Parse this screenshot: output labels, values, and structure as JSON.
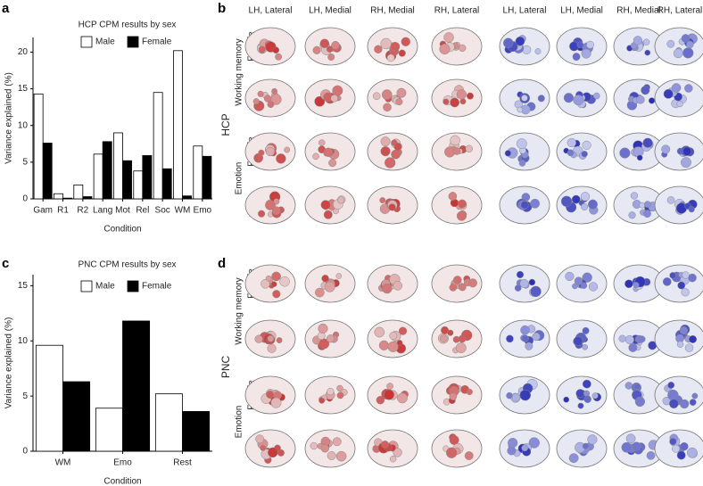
{
  "chart_data": [
    {
      "type": "bar",
      "label": "a",
      "title": "HCP CPM results by sex",
      "xlabel": "Condition",
      "ylabel": "Variance explained (%)",
      "categories": [
        "Gam",
        "R1",
        "R2",
        "Lang",
        "Mot",
        "Rel",
        "Soc",
        "WM",
        "Emo"
      ],
      "series": [
        {
          "name": "Male",
          "color": "#ffffff",
          "values": [
            14.3,
            0.7,
            1.9,
            6.1,
            9.0,
            3.8,
            14.5,
            20.2,
            7.2
          ]
        },
        {
          "name": "Female",
          "color": "#000000",
          "values": [
            7.6,
            0.1,
            0.3,
            7.8,
            5.2,
            5.9,
            4.1,
            0.4,
            5.8
          ]
        }
      ],
      "ylim": [
        0,
        22
      ],
      "yticks": [
        0,
        5,
        10,
        15,
        20
      ]
    },
    {
      "type": "bar",
      "label": "c",
      "title": "PNC CPM results by sex",
      "xlabel": "Condition",
      "ylabel": "Variance explained (%)",
      "categories": [
        "WM",
        "Emo",
        "Rest"
      ],
      "series": [
        {
          "name": "Male",
          "color": "#ffffff",
          "values": [
            9.6,
            3.9,
            5.2
          ]
        },
        {
          "name": "Female",
          "color": "#000000",
          "values": [
            6.3,
            11.8,
            3.6
          ]
        }
      ],
      "ylim": [
        0,
        16
      ],
      "yticks": [
        0,
        5,
        10,
        15
      ]
    }
  ],
  "brain_columns": [
    "LH, Lateral",
    "LH, Medial",
    "RH, Medial",
    "RH, Lateral",
    "LH, Lateral",
    "LH, Medial",
    "RH, Medial",
    "RH, Lateral"
  ],
  "brain_panels": [
    {
      "label": "b",
      "dataset": "HCP",
      "groups": [
        {
          "name": "Working memory",
          "rows": [
            "Female",
            "Male"
          ]
        },
        {
          "name": "Emotion",
          "rows": [
            "Female",
            "Male"
          ]
        }
      ]
    },
    {
      "label": "d",
      "dataset": "PNC",
      "groups": [
        {
          "name": "Working memory",
          "rows": [
            "Female",
            "Male"
          ]
        },
        {
          "name": "Emotion",
          "rows": [
            "Female",
            "Male"
          ]
        }
      ]
    }
  ]
}
